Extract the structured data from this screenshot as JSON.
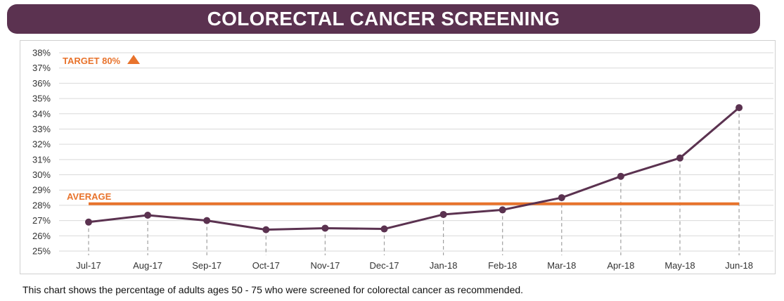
{
  "header": {
    "title": "COLORECTAL CANCER SCREENING"
  },
  "caption": "This chart shows the percentage of adults ages 50 - 75 who were screened for colorectal cancer as recommended.",
  "colors": {
    "series": "#5b3250",
    "average": "#e8732c",
    "grid": "#d9d9d9",
    "dash": "#a0a0a0",
    "title_bg": "#5b3250"
  },
  "chart_data": {
    "type": "line",
    "categories": [
      "Jul-17",
      "Aug-17",
      "Sep-17",
      "Oct-17",
      "Nov-17",
      "Dec-17",
      "Jan-18",
      "Feb-18",
      "Mar-18",
      "Apr-18",
      "May-18",
      "Jun-18"
    ],
    "values": [
      26.9,
      27.35,
      27.0,
      26.4,
      26.5,
      26.45,
      27.4,
      27.7,
      28.5,
      29.9,
      31.1,
      34.4
    ],
    "ylim": [
      25,
      38
    ],
    "yticks": [
      "25%",
      "26%",
      "27%",
      "28%",
      "29%",
      "30%",
      "31%",
      "32%",
      "33%",
      "34%",
      "35%",
      "36%",
      "37%",
      "38%"
    ],
    "average": {
      "label": "AVERAGE",
      "value": 28.1
    },
    "target": {
      "label": "TARGET 80%",
      "marker": "up-triangle"
    },
    "grid": true
  }
}
